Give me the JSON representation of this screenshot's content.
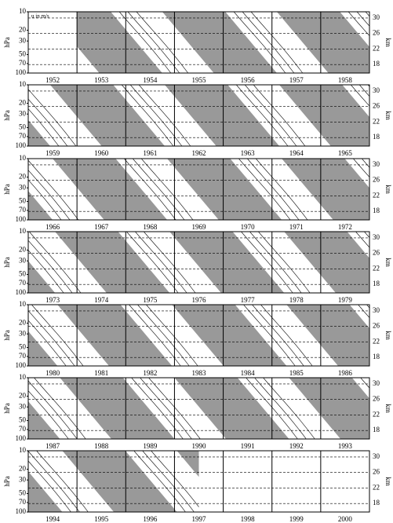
{
  "chart_data": [
    {
      "type": "contour",
      "annotation": "u in m/s",
      "ylabel": "hPa",
      "y2label": "km",
      "log_scale": true,
      "categories": [
        1952,
        1953,
        1954,
        1955,
        1956,
        1957,
        1958
      ],
      "ylim": [
        100,
        10
      ],
      "yticks": [
        10,
        20,
        30,
        50,
        70,
        100
      ],
      "y2lim": [
        15.8,
        31.6
      ],
      "y2ticks": [
        30,
        26,
        22,
        18
      ]
    },
    {
      "type": "contour",
      "ylabel": "hPa",
      "y2label": "km",
      "log_scale": true,
      "categories": [
        1959,
        1960,
        1961,
        1962,
        1963,
        1964,
        1965
      ],
      "ylim": [
        100,
        10
      ],
      "yticks": [
        10,
        20,
        30,
        50,
        70,
        100
      ],
      "y2lim": [
        15.8,
        31.6
      ],
      "y2ticks": [
        30,
        26,
        22,
        18
      ]
    },
    {
      "type": "contour",
      "ylabel": "hPa",
      "y2label": "km",
      "log_scale": true,
      "categories": [
        1966,
        1967,
        1968,
        1969,
        1970,
        1971,
        1972
      ],
      "ylim": [
        100,
        10
      ],
      "yticks": [
        10,
        20,
        30,
        50,
        70,
        100
      ],
      "y2lim": [
        15.8,
        31.6
      ],
      "y2ticks": [
        30,
        26,
        22,
        18
      ]
    },
    {
      "type": "contour",
      "ylabel": "hPa",
      "y2label": "km",
      "log_scale": true,
      "categories": [
        1973,
        1974,
        1975,
        1976,
        1977,
        1978,
        1979
      ],
      "ylim": [
        100,
        10
      ],
      "yticks": [
        10,
        20,
        30,
        50,
        70,
        100
      ],
      "y2lim": [
        15.8,
        31.6
      ],
      "y2ticks": [
        30,
        26,
        22,
        18
      ]
    },
    {
      "type": "contour",
      "ylabel": "hPa",
      "y2label": "km",
      "log_scale": true,
      "categories": [
        1980,
        1981,
        1982,
        1983,
        1984,
        1985,
        1986
      ],
      "ylim": [
        100,
        10
      ],
      "yticks": [
        10,
        20,
        30,
        50,
        70,
        100
      ],
      "y2lim": [
        15.8,
        31.6
      ],
      "y2ticks": [
        30,
        26,
        22,
        18
      ]
    },
    {
      "type": "contour",
      "ylabel": "hPa",
      "y2label": "km",
      "log_scale": true,
      "categories": [
        1987,
        1988,
        1989,
        1990,
        1991,
        1992,
        1993
      ],
      "ylim": [
        100,
        10
      ],
      "yticks": [
        10,
        20,
        30,
        50,
        70,
        100
      ],
      "y2lim": [
        15.8,
        31.6
      ],
      "y2ticks": [
        30,
        26,
        22,
        18
      ]
    },
    {
      "type": "contour",
      "ylabel": "hPa",
      "y2label": "km",
      "log_scale": true,
      "categories": [
        1994,
        1995,
        1996,
        1997,
        1998,
        1999,
        2000
      ],
      "ylim": [
        100,
        10
      ],
      "yticks": [
        10,
        20,
        30,
        50,
        70,
        100
      ],
      "y2lim": [
        15.8,
        31.6
      ],
      "y2ticks": [
        30,
        26,
        22,
        18
      ]
    }
  ]
}
